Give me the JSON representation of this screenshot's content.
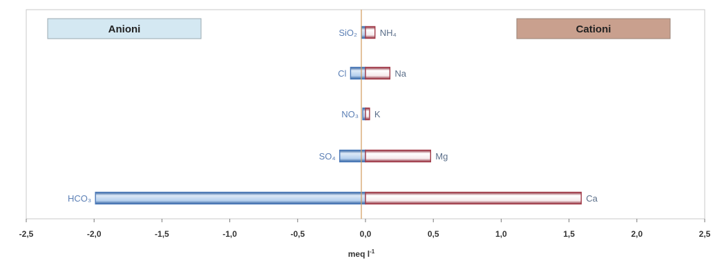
{
  "chart_data": {
    "type": "bar",
    "orientation": "horizontal",
    "xlabel": "meq l",
    "xlabel_superscript": "-1",
    "xlim": [
      -2.5,
      2.5
    ],
    "xticks": [
      "-2,5",
      "-2,0",
      "-1,5",
      "-1,0",
      "-0,5",
      "0,0",
      "0,5",
      "1,0",
      "1,5",
      "2,0",
      "2,5"
    ],
    "grid": false,
    "series": [
      {
        "name": "Anioni",
        "color": "#4a78b8",
        "fill": "#cfe0f5",
        "labels": [
          "SiO2",
          "Cl",
          "NO3",
          "SO4",
          "HCO3"
        ],
        "values": [
          -0.03,
          -0.11,
          -0.02,
          -0.19,
          -1.99
        ]
      },
      {
        "name": "Cationi",
        "color": "#a23a48",
        "fill": "#ffffff",
        "labels": [
          "NH4",
          "Na",
          "K",
          "Mg",
          "Ca"
        ],
        "values": [
          0.07,
          0.18,
          0.03,
          0.48,
          1.59
        ]
      }
    ],
    "legend": {
      "anion_label": "Anioni",
      "anion_fill": "#d4e8f2",
      "cation_label": "Cationi",
      "cation_fill": "#c9a08e"
    }
  }
}
